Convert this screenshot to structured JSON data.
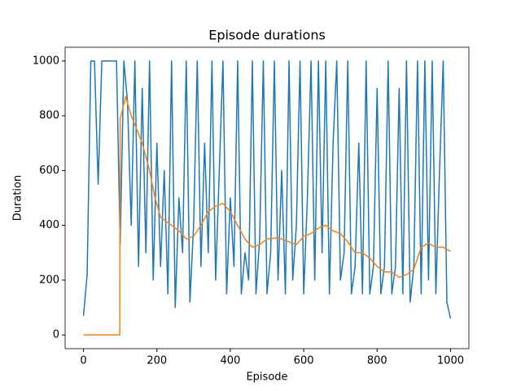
{
  "chart_data": {
    "type": "line",
    "title": "Episode durations",
    "xlabel": "Episode",
    "ylabel": "Duration",
    "xlim": [
      -50,
      1050
    ],
    "ylim": [
      -50,
      1050
    ],
    "xticks": [
      0,
      200,
      400,
      600,
      800,
      1000
    ],
    "yticks": [
      0,
      200,
      400,
      600,
      800,
      1000
    ],
    "series": [
      {
        "color": "#1f77b4",
        "x": [
          0,
          10,
          20,
          30,
          40,
          50,
          60,
          70,
          80,
          90,
          100,
          110,
          120,
          130,
          140,
          150,
          160,
          170,
          180,
          190,
          200,
          210,
          220,
          230,
          240,
          250,
          260,
          270,
          280,
          290,
          300,
          310,
          320,
          330,
          340,
          350,
          360,
          370,
          380,
          390,
          400,
          410,
          420,
          430,
          440,
          450,
          460,
          470,
          480,
          490,
          500,
          510,
          520,
          530,
          540,
          550,
          560,
          570,
          580,
          590,
          600,
          610,
          620,
          630,
          640,
          650,
          660,
          670,
          680,
          690,
          700,
          710,
          720,
          730,
          740,
          750,
          760,
          770,
          780,
          790,
          800,
          810,
          820,
          830,
          840,
          850,
          860,
          870,
          880,
          890,
          900,
          910,
          920,
          930,
          940,
          950,
          960,
          970,
          980,
          990,
          1000
        ],
        "values": [
          70,
          220,
          1000,
          1000,
          550,
          1000,
          1000,
          1000,
          1000,
          1000,
          330,
          1000,
          850,
          400,
          1000,
          250,
          900,
          300,
          1000,
          200,
          700,
          250,
          600,
          150,
          1000,
          100,
          500,
          300,
          1000,
          120,
          400,
          1000,
          250,
          700,
          300,
          1000,
          200,
          600,
          1000,
          150,
          500,
          250,
          1000,
          150,
          300,
          200,
          1000,
          150,
          350,
          1000,
          150,
          300,
          1000,
          200,
          600,
          150,
          1000,
          200,
          400,
          1000,
          150,
          500,
          1000,
          200,
          1000,
          300,
          1000,
          150,
          700,
          1000,
          200,
          300,
          1000,
          150,
          250,
          700,
          150,
          1000,
          150,
          250,
          900,
          150,
          250,
          1000,
          150,
          250,
          900,
          150,
          1000,
          120,
          250,
          1000,
          150,
          1000,
          200,
          1000,
          150,
          600,
          1000,
          120,
          60
        ]
      },
      {
        "color": "#ff7f0e",
        "x": [
          0,
          99,
          100,
          115,
          130,
          160,
          180,
          195,
          210,
          240,
          260,
          280,
          300,
          320,
          340,
          360,
          380,
          400,
          420,
          440,
          460,
          480,
          500,
          530,
          560,
          580,
          600,
          620,
          640,
          660,
          680,
          700,
          720,
          740,
          760,
          780,
          800,
          820,
          840,
          860,
          880,
          900,
          920,
          940,
          960,
          980,
          1000
        ],
        "values": [
          0,
          0,
          790,
          870,
          800,
          700,
          600,
          500,
          430,
          400,
          380,
          350,
          360,
          400,
          450,
          470,
          480,
          450,
          400,
          350,
          320,
          330,
          350,
          355,
          340,
          330,
          360,
          370,
          390,
          400,
          380,
          370,
          340,
          300,
          300,
          280,
          250,
          230,
          230,
          210,
          220,
          240,
          320,
          335,
          320,
          320,
          305
        ]
      }
    ]
  }
}
